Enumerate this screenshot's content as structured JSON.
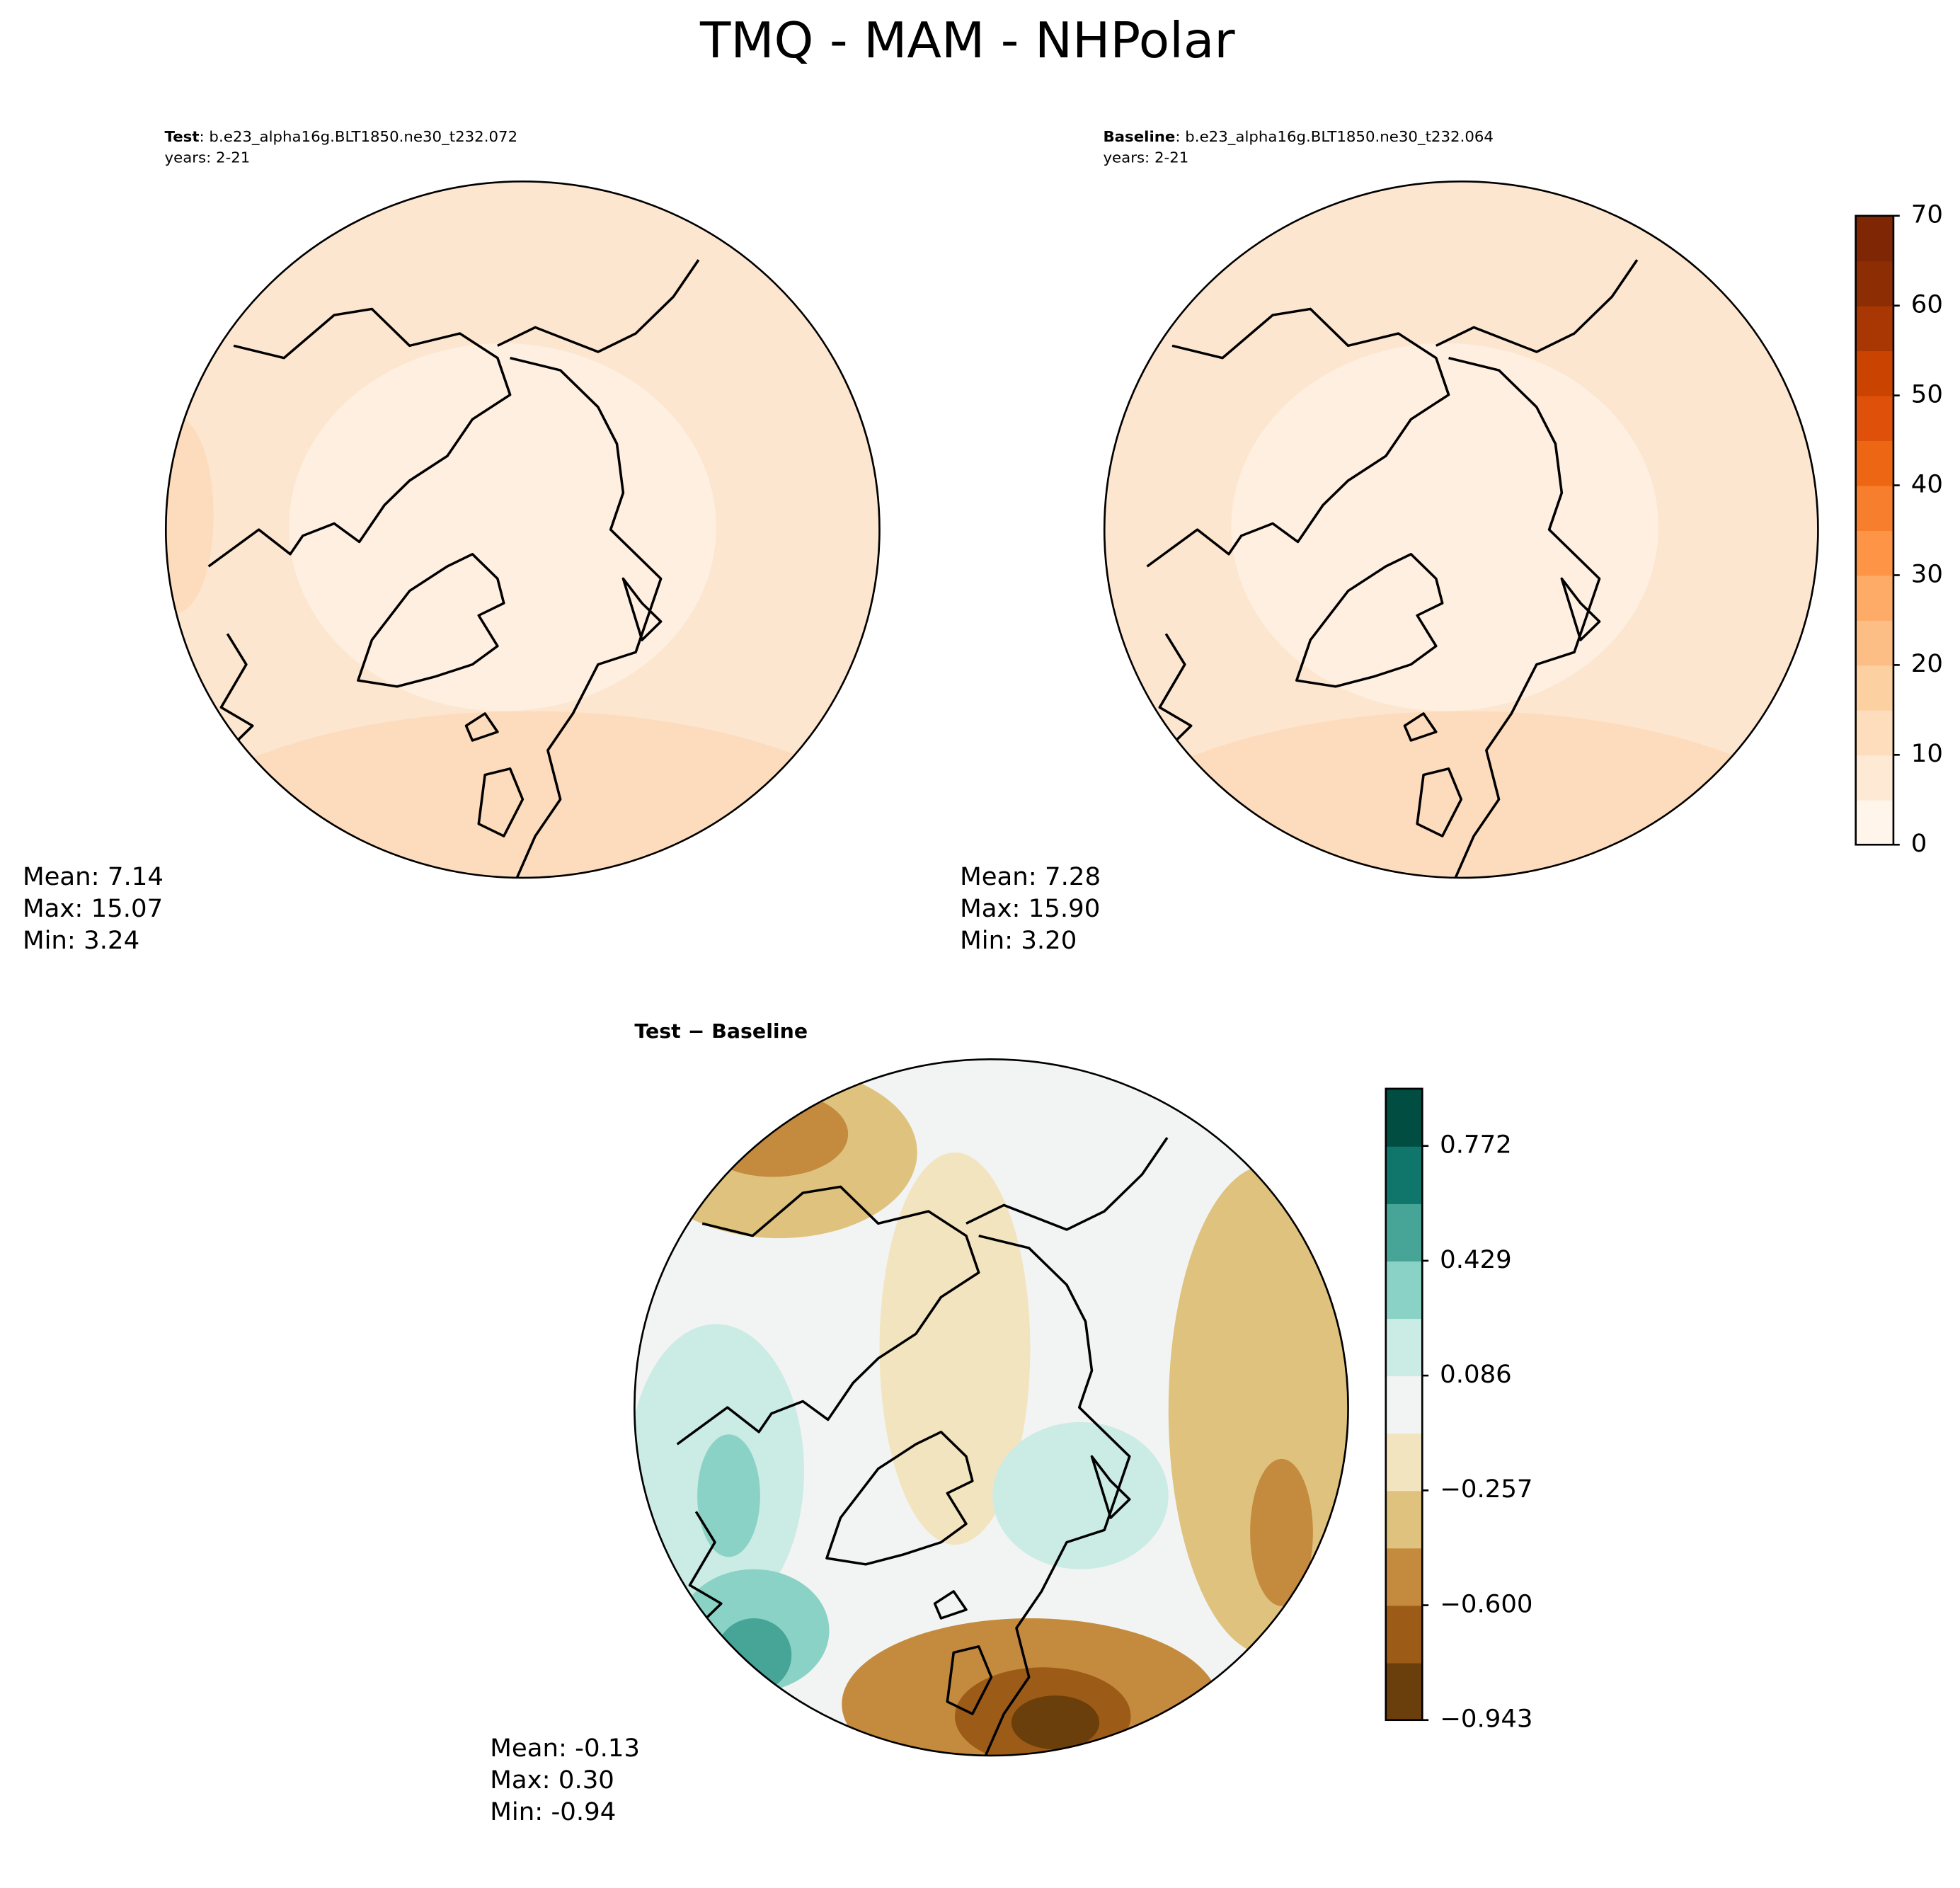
{
  "title": "TMQ - MAM - NHPolar",
  "panels": [
    {
      "name": "Test",
      "case": ": b.e23_alpha16g.BLT1850.ne30_t232.072",
      "years": "years: 2-21",
      "stats": [
        "Mean:  7.14",
        "Max: 15.07",
        "Min:  3.24"
      ]
    },
    {
      "name": "Baseline",
      "case": ": b.e23_alpha16g.BLT1850.ne30_t232.064",
      "years": "years: 2-21",
      "stats": [
        "Mean:  7.28",
        "Max: 15.90",
        "Min:  3.20"
      ]
    }
  ],
  "diff": {
    "title": "Test − Baseline",
    "stats": [
      "Mean: -0.13",
      "Max:  0.30",
      "Min: -0.94"
    ]
  },
  "colorbars": [
    {
      "lim": [
        0,
        70
      ],
      "ticks": [
        0,
        10,
        20,
        30,
        40,
        50,
        60,
        70
      ],
      "colors": [
        "#fff5eb",
        "#fee9d5",
        "#fdddbc",
        "#fdd0a2",
        "#fdbe85",
        "#fdab67",
        "#fd9446",
        "#f67e2c",
        "#ed6614",
        "#df510a",
        "#cb4301",
        "#a83703",
        "#8c2d04",
        "#7f2704"
      ]
    },
    {
      "lim": [
        -0.943,
        0.943
      ],
      "ticks": [
        {
          "value": -0.943,
          "label": "−0.943"
        },
        {
          "value": -0.6,
          "label": "−0.600"
        },
        {
          "value": -0.257,
          "label": "−0.257"
        },
        0.086,
        0.429,
        0.772
      ],
      "colors": [
        "#6b3f0b",
        "#9c5b17",
        "#c48a3e",
        "#dfc27d",
        "#f3e4c0",
        "#f2f4f3",
        "#cbebe5",
        "#8ad2c5",
        "#46a597",
        "#10766c",
        "#014d42"
      ]
    }
  ]
}
